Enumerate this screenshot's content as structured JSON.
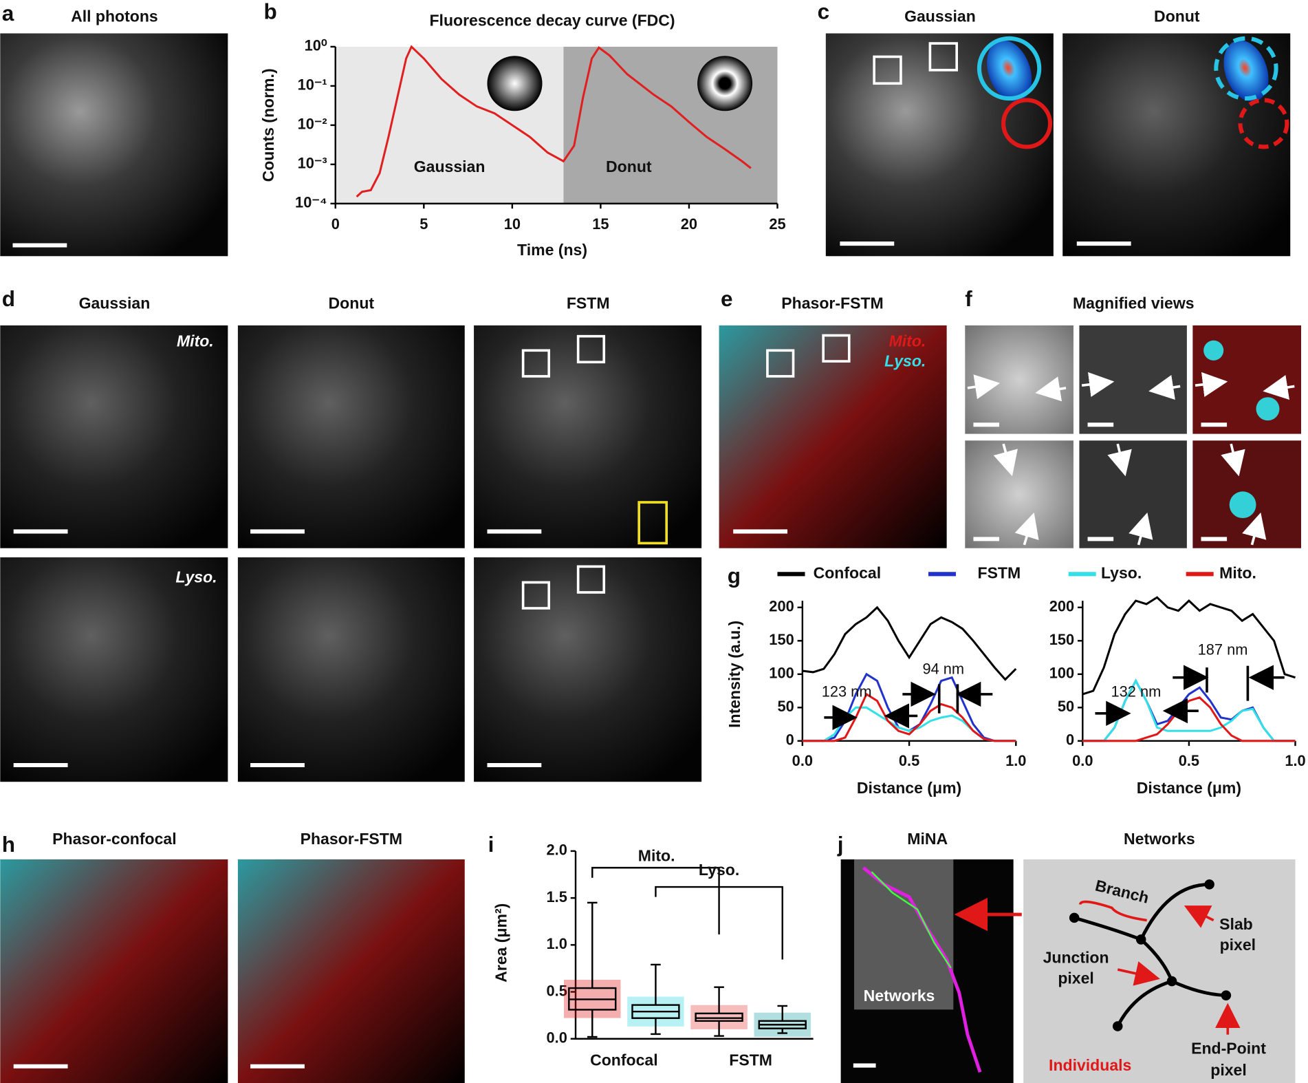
{
  "panels": {
    "a": {
      "letter": "a",
      "title": "All photons"
    },
    "b": {
      "letter": "b"
    },
    "c": {
      "letter": "c",
      "titles": [
        "Gaussian",
        "Donut"
      ]
    },
    "d": {
      "letter": "d",
      "titles": [
        "Gaussian",
        "Donut",
        "FSTM"
      ],
      "rows": [
        "Mito.",
        "Lyso."
      ]
    },
    "e": {
      "letter": "e",
      "title": "Phasor-FSTM",
      "legend": [
        "Mito.",
        "Lyso."
      ]
    },
    "f": {
      "letter": "f",
      "title": "Magnified views"
    },
    "g": {
      "letter": "g"
    },
    "h": {
      "letter": "h",
      "titles": [
        "Phasor-confocal",
        "Phasor-FSTM"
      ]
    },
    "i": {
      "letter": "i"
    },
    "j": {
      "letter": "j",
      "titles": [
        "MiNA",
        "Networks"
      ],
      "overlay": "Networks",
      "branch": "Branch",
      "slab": [
        "Slab",
        "pixel"
      ],
      "junction": [
        "Junction",
        "pixel"
      ],
      "endpoint": [
        "End-Point",
        "pixel"
      ],
      "individuals": "Individuals"
    }
  },
  "fdc": {
    "type": "line",
    "title": "Fluorescence decay curve (FDC)",
    "xlabel": "Time (ns)",
    "ylabel": "Counts (norm.)",
    "regions": [
      "Gaussian",
      "Donut"
    ],
    "region_split": 12.9,
    "color": "#e02020",
    "log_y": true,
    "xlim": [
      0,
      25
    ],
    "xticks": [
      0,
      5,
      10,
      15,
      20,
      25
    ],
    "ylim": [
      0.0001,
      1
    ],
    "yticks": [
      {
        "value": 1,
        "label": "10⁰"
      },
      {
        "value": 0.1,
        "label": "10⁻¹"
      },
      {
        "value": 0.01,
        "label": "10⁻²"
      },
      {
        "value": 0.001,
        "label": "10⁻³"
      },
      {
        "value": 0.0001,
        "label": "10⁻⁴"
      }
    ],
    "x": [
      1.2,
      1.5,
      2,
      2.5,
      3,
      3.5,
      4,
      4.3,
      5,
      6,
      7,
      8,
      9,
      10,
      11,
      12,
      12.9,
      13.5,
      14,
      14.5,
      14.9,
      15.5,
      16.5,
      18,
      19,
      20,
      21,
      22,
      23,
      23.5
    ],
    "values": [
      0.00015,
      0.0002,
      0.00022,
      0.0006,
      0.005,
      0.05,
      0.5,
      1,
      0.5,
      0.15,
      0.06,
      0.03,
      0.02,
      0.01,
      0.005,
      0.002,
      0.0012,
      0.003,
      0.05,
      0.5,
      0.95,
      0.6,
      0.2,
      0.06,
      0.03,
      0.012,
      0.005,
      0.0025,
      0.0012,
      0.0008
    ]
  },
  "profiles": {
    "type": "line",
    "ylabel": "Intensity (a.u.)",
    "legend": [
      "Confocal",
      "FSTM",
      "Lyso.",
      "Mito."
    ],
    "charts": [
      {
        "xlabel": "Distance (μm)",
        "xlim": [
          0,
          1
        ],
        "xticks": [
          {
            "value": 0,
            "label": "0.0"
          },
          {
            "value": 0.5,
            "label": "0.5"
          },
          {
            "value": 1,
            "label": "1.0"
          }
        ],
        "ylim": [
          0,
          200
        ],
        "yticks": [
          0,
          50,
          100,
          150,
          200
        ],
        "annotations": [
          "123 nm",
          "94 nm"
        ],
        "x": [
          0,
          0.05,
          0.1,
          0.15,
          0.2,
          0.25,
          0.3,
          0.35,
          0.4,
          0.45,
          0.5,
          0.55,
          0.6,
          0.65,
          0.7,
          0.75,
          0.8,
          0.85,
          0.9,
          0.95,
          1
        ],
        "series": [
          {
            "name": "Confocal",
            "color": "#000000",
            "values": [
              105,
              103,
              108,
              130,
              160,
              175,
              185,
              200,
              180,
              150,
              125,
              150,
              175,
              185,
              178,
              168,
              150,
              130,
              110,
              92,
              108
            ]
          },
          {
            "name": "FSTM",
            "color": "#2233cc",
            "values": [
              0,
              0,
              0,
              5,
              30,
              70,
              100,
              90,
              50,
              20,
              15,
              25,
              55,
              90,
              95,
              60,
              25,
              5,
              0,
              0,
              0
            ]
          },
          {
            "name": "Lyso.",
            "color": "#33e0e8",
            "values": [
              0,
              0,
              0,
              10,
              35,
              50,
              50,
              40,
              30,
              20,
              15,
              20,
              30,
              35,
              38,
              30,
              15,
              3,
              0,
              0,
              0
            ]
          },
          {
            "name": "Mito.",
            "color": "#e01818",
            "values": [
              0,
              0,
              0,
              0,
              5,
              35,
              70,
              60,
              30,
              15,
              10,
              25,
              45,
              55,
              50,
              35,
              15,
              3,
              0,
              0,
              0
            ]
          }
        ]
      },
      {
        "xlabel": "Distance (μm)",
        "xlim": [
          0,
          1
        ],
        "xticks": [
          {
            "value": 0,
            "label": "0.0"
          },
          {
            "value": 0.5,
            "label": "0.5"
          },
          {
            "value": 1,
            "label": "1.0"
          }
        ],
        "ylim": [
          0,
          200
        ],
        "yticks": [
          0,
          50,
          100,
          150,
          200
        ],
        "annotations": [
          "132 nm",
          "187 nm"
        ],
        "x": [
          0,
          0.05,
          0.1,
          0.15,
          0.2,
          0.25,
          0.3,
          0.35,
          0.4,
          0.45,
          0.5,
          0.55,
          0.6,
          0.65,
          0.7,
          0.75,
          0.8,
          0.85,
          0.9,
          0.95,
          1
        ],
        "series": [
          {
            "name": "Confocal",
            "color": "#000000",
            "values": [
              70,
              75,
              110,
              160,
              190,
              210,
              205,
              215,
              200,
              195,
              210,
              195,
              205,
              200,
              195,
              180,
              190,
              170,
              150,
              100,
              95
            ]
          },
          {
            "name": "FSTM",
            "color": "#2233cc",
            "values": [
              0,
              0,
              0,
              20,
              60,
              90,
              60,
              25,
              30,
              50,
              70,
              80,
              60,
              35,
              32,
              45,
              50,
              20,
              0,
              0,
              0
            ]
          },
          {
            "name": "Lyso.",
            "color": "#33e0e8",
            "values": [
              0,
              0,
              0,
              20,
              60,
              90,
              60,
              20,
              15,
              15,
              15,
              15,
              15,
              20,
              30,
              45,
              48,
              20,
              0,
              0,
              0
            ]
          },
          {
            "name": "Mito.",
            "color": "#e01818",
            "values": [
              0,
              0,
              0,
              0,
              0,
              0,
              5,
              10,
              25,
              45,
              60,
              65,
              50,
              25,
              8,
              0,
              0,
              0,
              0,
              0,
              0
            ]
          }
        ]
      }
    ]
  },
  "area": {
    "type": "box",
    "ylabel": "Area (μm²)",
    "categories": [
      "Confocal",
      "FSTM"
    ],
    "brackets": [
      "Mito.",
      "Lyso."
    ],
    "ylim": [
      0,
      2
    ],
    "yticks": [
      {
        "value": 0,
        "label": "0.0"
      },
      {
        "value": 0.5,
        "label": "0.5"
      },
      {
        "value": 1,
        "label": "1.0"
      },
      {
        "value": 1.5,
        "label": "1.5"
      },
      {
        "value": 2,
        "label": "2.0"
      }
    ],
    "boxes": [
      {
        "color": "#e01818",
        "min": 0.02,
        "q1": 0.31,
        "median": 0.42,
        "q3": 0.54,
        "max": 1.45
      },
      {
        "color": "#33d8e0",
        "min": 0.05,
        "q1": 0.22,
        "median": 0.29,
        "q3": 0.36,
        "max": 0.79
      },
      {
        "color": "#e84040",
        "min": 0.03,
        "q1": 0.19,
        "median": 0.22,
        "q3": 0.27,
        "max": 0.55
      },
      {
        "color": "#1fa3a3",
        "min": 0.06,
        "q1": 0.11,
        "median": 0.15,
        "q3": 0.19,
        "max": 0.35
      }
    ]
  }
}
